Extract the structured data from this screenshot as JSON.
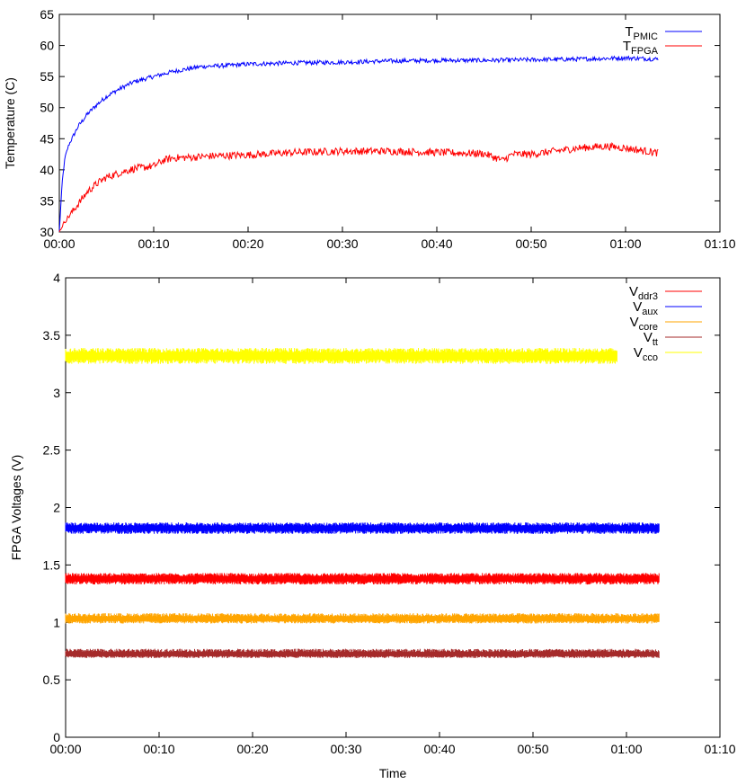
{
  "chart_data": [
    {
      "type": "line",
      "ylabel": "Temperature (C)",
      "xlabel": "",
      "xlim": [
        0,
        70
      ],
      "ylim": [
        30,
        65
      ],
      "xticks": [
        "00:00",
        "00:10",
        "00:20",
        "00:30",
        "00:40",
        "00:50",
        "01:00",
        "01:10"
      ],
      "xtick_values": [
        0,
        10,
        20,
        30,
        40,
        50,
        60,
        70
      ],
      "yticks": [
        30,
        35,
        40,
        45,
        50,
        55,
        60,
        65
      ],
      "legend_position": "top-right",
      "series": [
        {
          "name": "T",
          "sub": "PMIC",
          "color": "#0000ff",
          "noise": 0.35,
          "x": [
            0,
            0.3,
            0.6,
            1,
            1.5,
            2,
            3,
            4,
            5,
            6,
            7,
            8,
            10,
            12,
            15,
            18,
            20,
            25,
            30,
            35,
            40,
            45,
            50,
            55,
            60,
            63.5
          ],
          "y": [
            30,
            38,
            42,
            44,
            45.5,
            47,
            49,
            50.5,
            51.8,
            52.7,
            53.5,
            54.2,
            55,
            55.8,
            56.6,
            56.8,
            57,
            57.2,
            57.3,
            57.5,
            57.6,
            57.6,
            57.7,
            57.8,
            58,
            57.8
          ]
        },
        {
          "name": "T",
          "sub": "FPGA",
          "color": "#ff0000",
          "noise": 0.6,
          "x": [
            0,
            0.5,
            1,
            2,
            3,
            4,
            5,
            6,
            7,
            8,
            10,
            11,
            12,
            14,
            16,
            18,
            20,
            25,
            30,
            35,
            40,
            45,
            47,
            48,
            50,
            55,
            58,
            60,
            63.5
          ],
          "y": [
            30,
            31.5,
            32.5,
            34.5,
            36.5,
            37.8,
            38.8,
            39.3,
            39.8,
            40.2,
            40.6,
            41.5,
            41.9,
            42,
            42.2,
            42.3,
            42.4,
            42.8,
            43,
            43,
            42.8,
            42.6,
            41.5,
            42.5,
            42.5,
            43.5,
            43.8,
            43.5,
            42.7
          ]
        }
      ]
    },
    {
      "type": "line",
      "ylabel": "FPGA Voltages (V)",
      "xlabel": "Time",
      "xlim": [
        0,
        70
      ],
      "ylim": [
        0,
        4
      ],
      "xticks": [
        "00:00",
        "00:10",
        "00:20",
        "00:30",
        "00:40",
        "00:50",
        "01:00",
        "01:10"
      ],
      "xtick_values": [
        0,
        10,
        20,
        30,
        40,
        50,
        60,
        70
      ],
      "yticks": [
        "0",
        "0.5",
        "1",
        "1.5",
        "2",
        "2.5",
        "3",
        "3.5",
        "4"
      ],
      "ytick_values": [
        0,
        0.5,
        1,
        1.5,
        2,
        2.5,
        3,
        3.5,
        4
      ],
      "legend_position": "top-right",
      "series": [
        {
          "name": "V",
          "sub": "ddr3",
          "color": "#ff0000",
          "x": [
            0,
            63.5
          ],
          "y": [
            1.38,
            1.38
          ],
          "band": [
            1.33,
            1.43
          ]
        },
        {
          "name": "V",
          "sub": "aux",
          "color": "#0000ff",
          "x": [
            0,
            63.5
          ],
          "y": [
            1.82,
            1.82
          ],
          "band": [
            1.77,
            1.87
          ]
        },
        {
          "name": "V",
          "sub": "core",
          "color": "#ffa500",
          "x": [
            0,
            63.5
          ],
          "y": [
            1.03,
            1.03
          ],
          "band": [
            0.99,
            1.08
          ]
        },
        {
          "name": "V",
          "sub": "tt",
          "color": "#a52a2a",
          "x": [
            0,
            63.5
          ],
          "y": [
            0.72,
            0.72
          ],
          "band": [
            0.69,
            0.77
          ]
        },
        {
          "name": "V",
          "sub": "cco",
          "color": "#ffff00",
          "x": [
            0,
            59
          ],
          "y": [
            3.32,
            3.32
          ],
          "band": [
            3.25,
            3.39
          ]
        }
      ]
    }
  ]
}
